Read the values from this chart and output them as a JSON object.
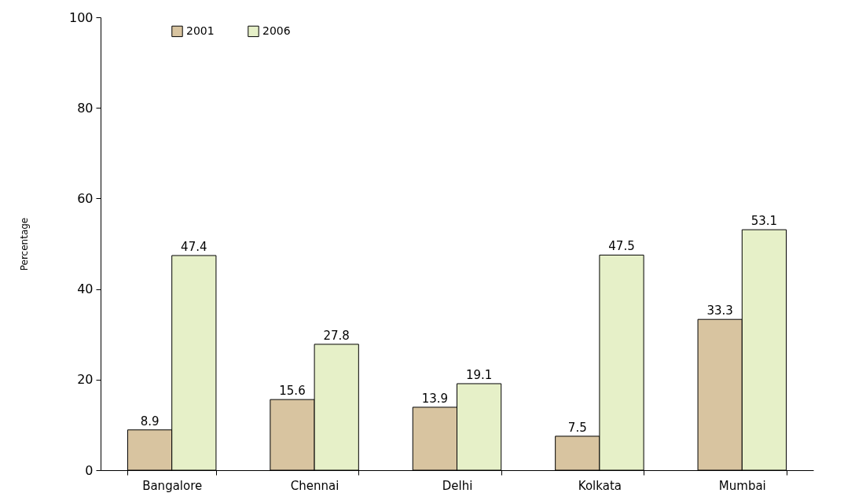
{
  "chart_data": {
    "type": "bar",
    "ylabel": "Percentage",
    "categories": [
      "Bangalore",
      "Chennai",
      "Delhi",
      "Kolkata",
      "Mumbai"
    ],
    "series": [
      {
        "name": "2001",
        "color": "#d8c4a0",
        "values": [
          8.9,
          15.6,
          13.9,
          7.5,
          33.3
        ]
      },
      {
        "name": "2006",
        "color": "#e6f0c8",
        "values": [
          47.4,
          27.8,
          19.1,
          47.5,
          53.1
        ]
      }
    ],
    "ylim": [
      0,
      100
    ],
    "yticks": [
      0,
      20,
      40,
      60,
      80,
      100
    ],
    "data_labels": true,
    "legend": "top left",
    "grid": false
  }
}
